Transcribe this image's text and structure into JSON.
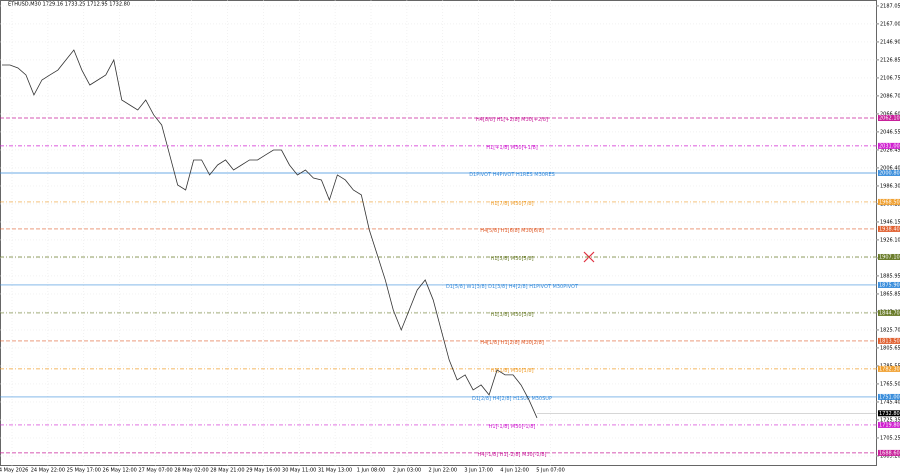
{
  "chart_data": {
    "type": "line",
    "title": "ETHUSD,M30 1729.16 1733.25 1712.95 1732.80",
    "ylim": [
      1674.0,
      2193.7
    ],
    "yticks": [
      {
        "value": 2187.05,
        "label": "2187.05"
      },
      {
        "value": 2167.0,
        "label": "2167.00"
      },
      {
        "value": 2146.9,
        "label": "2146.90"
      },
      {
        "value": 2126.85,
        "label": "2126.85"
      },
      {
        "value": 2106.75,
        "label": "2106.75"
      },
      {
        "value": 2086.7,
        "label": "2086.70"
      },
      {
        "value": 2066.6,
        "label": "2066.60"
      },
      {
        "value": 2046.55,
        "label": "2046.55"
      },
      {
        "value": 2026.45,
        "label": "2026.45"
      },
      {
        "value": 2006.4,
        "label": "2006.40"
      },
      {
        "value": 1986.3,
        "label": "1986.30"
      },
      {
        "value": 1966.25,
        "label": "1966.25"
      },
      {
        "value": 1946.15,
        "label": "1946.15"
      },
      {
        "value": 1926.1,
        "label": "1926.10"
      },
      {
        "value": 1906.0,
        "label": "1906.00"
      },
      {
        "value": 1885.95,
        "label": "1885.95"
      },
      {
        "value": 1865.85,
        "label": "1865.85"
      },
      {
        "value": 1845.8,
        "label": "1845.80"
      },
      {
        "value": 1825.7,
        "label": "1825.70"
      },
      {
        "value": 1805.65,
        "label": "1805.65"
      },
      {
        "value": 1785.55,
        "label": "1785.55"
      },
      {
        "value": 1765.5,
        "label": "1765.50"
      },
      {
        "value": 1745.4,
        "label": "1745.40"
      },
      {
        "value": 1725.35,
        "label": "1725.35"
      },
      {
        "value": 1705.25,
        "label": "1705.25"
      },
      {
        "value": 1685.2,
        "label": "1685.20"
      }
    ],
    "xtick_labels": [
      "24 May 2026",
      "24 May 22:00",
      "25 May 17:00",
      "26 May 12:00",
      "27 May 07:00",
      "28 May 02:00",
      "28 May 21:00",
      "29 May 16:00",
      "30 May 11:00",
      "31 May 13:00",
      "1 Jun 08:00",
      "2 Jun 03:00",
      "2 Jun 22:00",
      "3 Jun 17:00",
      "4 Jun 12:00",
      "5 Jun 07:00"
    ],
    "grid": true,
    "series": [
      {
        "name": "ETHUSD",
        "color": "#333333",
        "values": [
          2121.2,
          2121.2,
          2117.9,
          2110.1,
          2087.8,
          2104.5,
          2110.1,
          2115.6,
          2126.8,
          2137.9,
          2115.6,
          2098.9,
          2104.5,
          2110.1,
          2126.8,
          2082.2,
          2076.6,
          2071.0,
          2082.2,
          2065.5,
          2054.3,
          2020.9,
          1987.4,
          1981.8,
          2015.3,
          2015.3,
          1998.6,
          2009.7,
          2015.3,
          2004.1,
          2009.7,
          2015.3,
          2015.3,
          2020.9,
          2026.4,
          2026.4,
          2009.7,
          1998.6,
          2004.1,
          1995.2,
          1993.0,
          1970.7,
          1998.6,
          1993.0,
          1981.8,
          1976.3,
          1937.2,
          1909.4,
          1881.5,
          1848.0,
          1825.7,
          1848.0,
          1870.3,
          1881.5,
          1859.2,
          1825.7,
          1792.3,
          1770.0,
          1775.6,
          1758.8,
          1764.4,
          1753.3,
          1781.1,
          1775.6,
          1775.6,
          1764.4,
          1747.7,
          1727.6
        ]
      }
    ],
    "levels": [
      {
        "name": "H4[8/8] H1[+2/8] M30[+2/8]",
        "color": "#c8209a",
        "style": "dashed",
        "value": 2062.1,
        "value_label": "2062.10"
      },
      {
        "name": "H1[+1/8] M30[+1/8]",
        "color": "#d020d0",
        "style": "dashdot",
        "value": 2031.0,
        "value_label": "2031.00"
      },
      {
        "name": "D1PIVOT H4PIVOT H1RES M30RES",
        "color": "#3c8fdc",
        "style": "solid",
        "value": 2000.8,
        "value_label": "2000.80"
      },
      {
        "name": "H1[7/8] M30[7/8]",
        "color": "#f0a030",
        "style": "dashdot",
        "value": 1968.5,
        "value_label": "1968.50"
      },
      {
        "name": "H4[5/8] H1[6/8] M30[6/8]",
        "color": "#e06030",
        "style": "dashed",
        "value": 1938.4,
        "value_label": "1938.40"
      },
      {
        "name": "H1[5/8] M30[5/8]",
        "color": "#6b7d2b",
        "style": "dashdot",
        "value": 1907.1,
        "value_label": "1907.10"
      },
      {
        "name": "D1[5/8] W1[3/8] D1[3/8] H4[2/8] H1PIVOT M30PIVOT",
        "color": "#3c8fdc",
        "style": "solid",
        "value": 1875.9,
        "value_label": "1875.90"
      },
      {
        "name": "H1[3/8] M30[3/8]",
        "color": "#6b7d2b",
        "style": "dashdot",
        "value": 1844.7,
        "value_label": "1844.70"
      },
      {
        "name": "H4[1/8] H1[2/8] M30[2/8]",
        "color": "#e06030",
        "style": "dashed",
        "value": 1813.5,
        "value_label": "1813.50"
      },
      {
        "name": "H1[1/8] M30[1/8]",
        "color": "#f0a030",
        "style": "dashdot",
        "value": 1782.3,
        "value_label": "1782.30"
      },
      {
        "name": "D1[2/8] H4[2/8] H1SUP M30SUP",
        "color": "#3c8fdc",
        "style": "solid",
        "value": 1751.0,
        "value_label": "1751.00"
      },
      {
        "name": "H1[-1/8] M30[-1/8]",
        "color": "#d020d0",
        "style": "dashdot",
        "value": 1719.8,
        "value_label": "1719.80"
      },
      {
        "name": "H4[-1/8] H1[-2/8] M30[-2/8]",
        "color": "#c8209a",
        "style": "dashed",
        "value": 1688.6,
        "value_label": "1688.60"
      }
    ],
    "last_price": 1732.8,
    "last_price_label": "1732.80"
  }
}
